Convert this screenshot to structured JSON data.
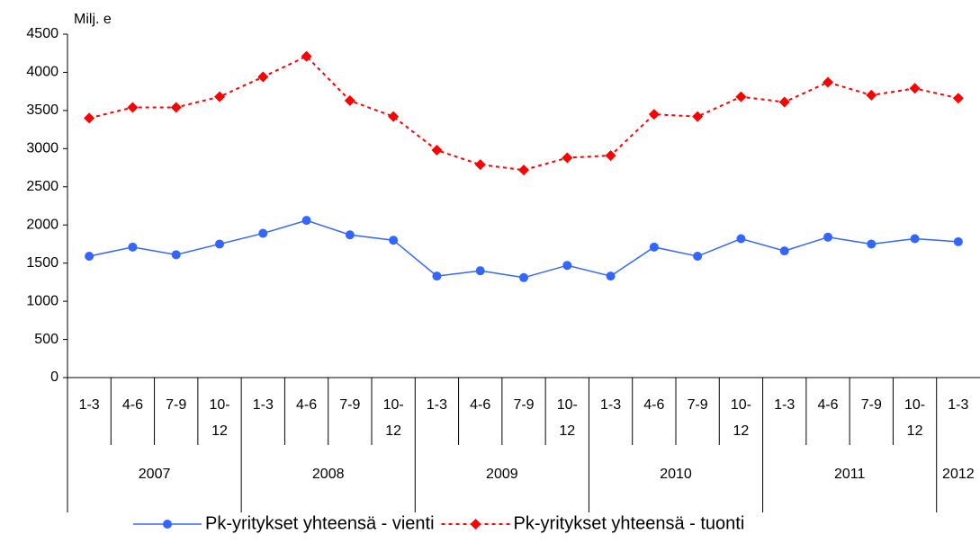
{
  "chart_data": {
    "type": "line",
    "y_label": "Milj. e",
    "categories": [
      "1-3",
      "4-6",
      "7-9",
      "10-12",
      "1-3",
      "4-6",
      "7-9",
      "10-12",
      "1-3",
      "4-6",
      "7-9",
      "10-12",
      "1-3",
      "4-6",
      "7-9",
      "10-12",
      "1-3",
      "4-6",
      "7-9",
      "10-12",
      "1-3"
    ],
    "years": [
      {
        "label": "2007",
        "span": 4
      },
      {
        "label": "2008",
        "span": 4
      },
      {
        "label": "2009",
        "span": 4
      },
      {
        "label": "2010",
        "span": 4
      },
      {
        "label": "2011",
        "span": 4
      },
      {
        "label": "2012",
        "span": 1
      }
    ],
    "series": [
      {
        "name": "Pk-yritykset yhteensä - vienti",
        "color": "#3366ff",
        "marker": "circle",
        "dashed": false,
        "values": [
          1590,
          1710,
          1610,
          1750,
          1890,
          2060,
          1870,
          1800,
          1330,
          1400,
          1310,
          1470,
          1330,
          1710,
          1590,
          1820,
          1660,
          1840,
          1750,
          1820,
          1780
        ]
      },
      {
        "name": "Pk-yritykset yhteensä - tuonti",
        "color": "#ff0000",
        "marker": "diamond",
        "dashed": true,
        "values": [
          3400,
          3540,
          3540,
          3680,
          3940,
          4210,
          3630,
          3420,
          2980,
          2790,
          2720,
          2880,
          2910,
          3450,
          3420,
          3680,
          3610,
          3870,
          3700,
          3790,
          3660
        ]
      }
    ],
    "ylim": [
      0,
      4500
    ],
    "yticks": [
      0,
      500,
      1000,
      1500,
      2000,
      2500,
      3000,
      3500,
      4000,
      4500
    ],
    "grid": false,
    "legend": "bottom"
  }
}
